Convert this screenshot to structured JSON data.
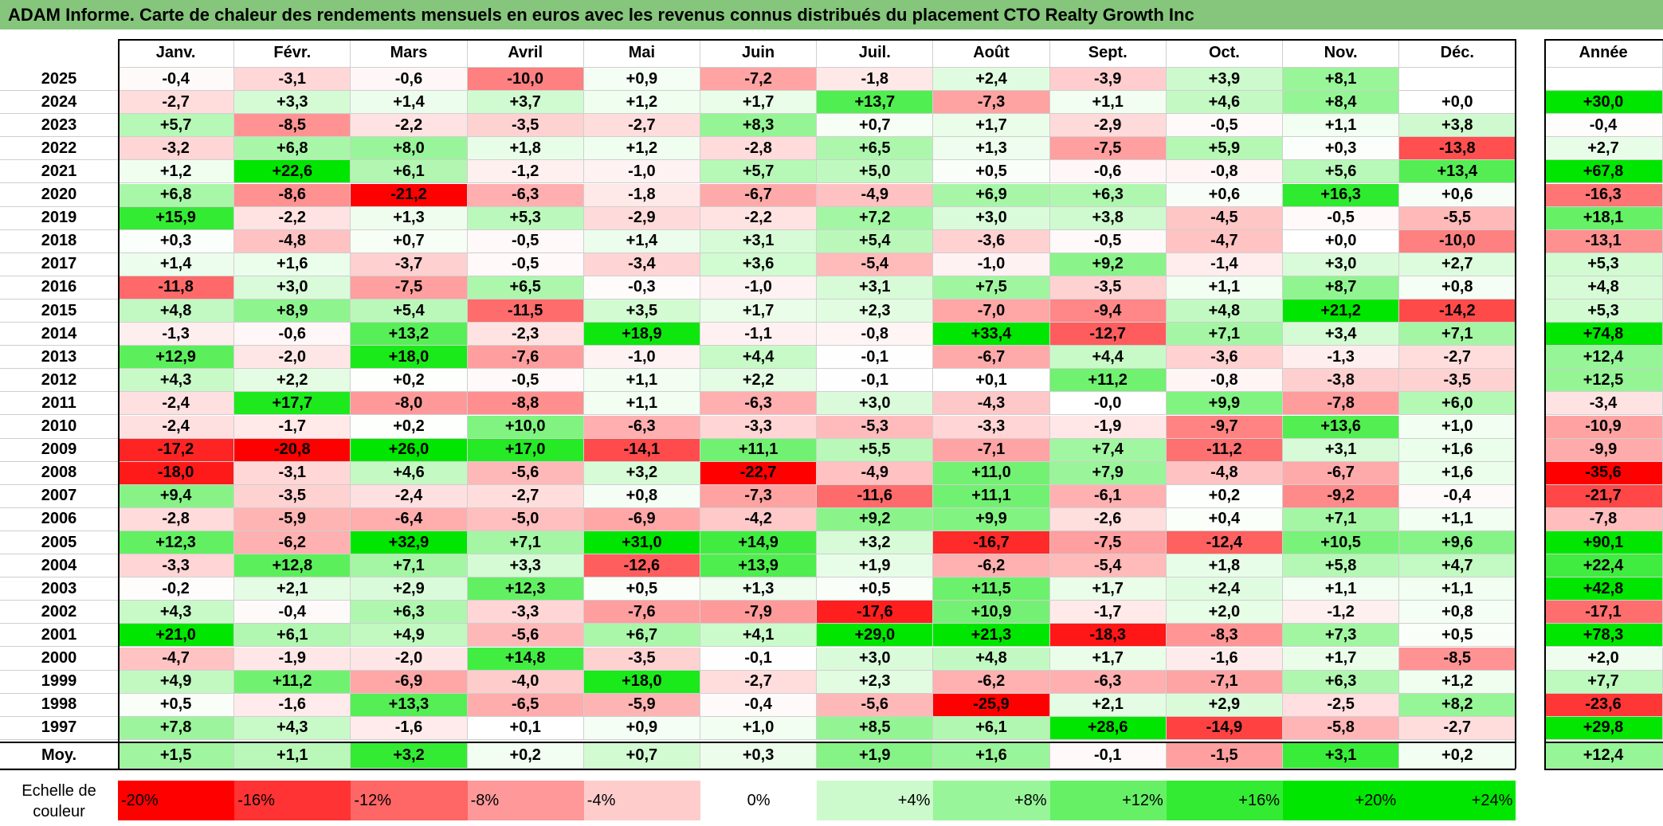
{
  "title": "ADAM Informe. Carte de chaleur des rendements mensuels en euros avec les revenus connus distribués du placement CTO Realty Growth Inc",
  "chart_data": {
    "type": "heatmap",
    "title": "ADAM Informe. Carte de chaleur des rendements mensuels en euros avec les revenus connus distribués du placement CTO Realty Growth Inc",
    "columns": [
      "Janv.",
      "Févr.",
      "Mars",
      "Avril",
      "Mai",
      "Juin",
      "Juil.",
      "Août",
      "Sept.",
      "Oct.",
      "Nov.",
      "Déc."
    ],
    "annual_label": "Année",
    "rows": [
      {
        "year": "2025",
        "values": [
          "-0,4",
          "-3,1",
          "-0,6",
          "-10,0",
          "+0,9",
          "-7,2",
          "-1,8",
          "+2,4",
          "-3,9",
          "+3,9",
          "+8,1",
          ""
        ],
        "annual": ""
      },
      {
        "year": "2024",
        "values": [
          "-2,7",
          "+3,3",
          "+1,4",
          "+3,7",
          "+1,2",
          "+1,7",
          "+13,7",
          "-7,3",
          "+1,1",
          "+4,6",
          "+8,4",
          "+0,0"
        ],
        "annual": "+30,0"
      },
      {
        "year": "2023",
        "values": [
          "+5,7",
          "-8,5",
          "-2,2",
          "-3,5",
          "-2,7",
          "+8,3",
          "+0,7",
          "+1,7",
          "-2,9",
          "-0,5",
          "+1,1",
          "+3,8"
        ],
        "annual": "-0,4"
      },
      {
        "year": "2022",
        "values": [
          "-3,2",
          "+6,8",
          "+8,0",
          "+1,8",
          "+1,2",
          "-2,8",
          "+6,5",
          "+1,3",
          "-7,5",
          "+5,9",
          "+0,3",
          "-13,8"
        ],
        "annual": "+2,7"
      },
      {
        "year": "2021",
        "values": [
          "+1,2",
          "+22,6",
          "+6,1",
          "-1,2",
          "-1,0",
          "+5,7",
          "+5,0",
          "+0,5",
          "-0,6",
          "-0,8",
          "+5,6",
          "+13,4"
        ],
        "annual": "+67,8"
      },
      {
        "year": "2020",
        "values": [
          "+6,8",
          "-8,6",
          "-21,2",
          "-6,3",
          "-1,8",
          "-6,7",
          "-4,9",
          "+6,9",
          "+6,3",
          "+0,6",
          "+16,3",
          "+0,6"
        ],
        "annual": "-16,3"
      },
      {
        "year": "2019",
        "values": [
          "+15,9",
          "-2,2",
          "+1,3",
          "+5,3",
          "-2,9",
          "-2,2",
          "+7,2",
          "+3,0",
          "+3,8",
          "-4,5",
          "-0,5",
          "-5,5"
        ],
        "annual": "+18,1"
      },
      {
        "year": "2018",
        "values": [
          "+0,3",
          "-4,8",
          "+0,7",
          "-0,5",
          "+1,4",
          "+3,1",
          "+5,4",
          "-3,6",
          "-0,5",
          "-4,7",
          "+0,0",
          "-10,0"
        ],
        "annual": "-13,1"
      },
      {
        "year": "2017",
        "values": [
          "+1,4",
          "+1,6",
          "-3,7",
          "-0,5",
          "-3,4",
          "+3,6",
          "-5,4",
          "-1,0",
          "+9,2",
          "-1,4",
          "+3,0",
          "+2,7"
        ],
        "annual": "+5,3"
      },
      {
        "year": "2016",
        "values": [
          "-11,8",
          "+3,0",
          "-7,5",
          "+6,5",
          "-0,3",
          "-1,0",
          "+3,1",
          "+7,5",
          "-3,5",
          "+1,1",
          "+8,7",
          "+0,8"
        ],
        "annual": "+4,8"
      },
      {
        "year": "2015",
        "values": [
          "+4,8",
          "+8,9",
          "+5,4",
          "-11,5",
          "+3,5",
          "+1,7",
          "+2,3",
          "-7,0",
          "-9,4",
          "+4,8",
          "+21,2",
          "-14,2"
        ],
        "annual": "+5,3"
      },
      {
        "year": "2014",
        "values": [
          "-1,3",
          "-0,6",
          "+13,2",
          "-2,3",
          "+18,9",
          "-1,1",
          "-0,8",
          "+33,4",
          "-12,7",
          "+7,1",
          "+3,4",
          "+7,1"
        ],
        "annual": "+74,8"
      },
      {
        "year": "2013",
        "values": [
          "+12,9",
          "-2,0",
          "+18,0",
          "-7,6",
          "-1,0",
          "+4,4",
          "-0,1",
          "-6,7",
          "+4,4",
          "-3,6",
          "-1,3",
          "-2,7"
        ],
        "annual": "+12,4"
      },
      {
        "year": "2012",
        "values": [
          "+4,3",
          "+2,2",
          "+0,2",
          "-0,5",
          "+1,1",
          "+2,2",
          "-0,1",
          "+0,1",
          "+11,2",
          "-0,8",
          "-3,8",
          "-3,5"
        ],
        "annual": "+12,5"
      },
      {
        "year": "2011",
        "values": [
          "-2,4",
          "+17,7",
          "-8,0",
          "-8,8",
          "+1,1",
          "-6,3",
          "+3,0",
          "-4,3",
          "-0,0",
          "+9,9",
          "-7,8",
          "+6,0"
        ],
        "annual": "-3,4"
      },
      {
        "year": "2010",
        "values": [
          "-2,4",
          "-1,7",
          "+0,2",
          "+10,0",
          "-6,3",
          "-3,3",
          "-5,3",
          "-3,3",
          "-1,9",
          "-9,7",
          "+13,6",
          "+1,0"
        ],
        "annual": "-10,9"
      },
      {
        "year": "2009",
        "values": [
          "-17,2",
          "-20,8",
          "+26,0",
          "+17,0",
          "-14,1",
          "+11,1",
          "+5,5",
          "-7,1",
          "+7,4",
          "-11,2",
          "+3,1",
          "+1,6"
        ],
        "annual": "-9,9"
      },
      {
        "year": "2008",
        "values": [
          "-18,0",
          "-3,1",
          "+4,6",
          "-5,6",
          "+3,2",
          "-22,7",
          "-4,9",
          "+11,0",
          "+7,9",
          "-4,8",
          "-6,7",
          "+1,6"
        ],
        "annual": "-35,6"
      },
      {
        "year": "2007",
        "values": [
          "+9,4",
          "-3,5",
          "-2,4",
          "-2,7",
          "+0,8",
          "-7,3",
          "-11,6",
          "+11,1",
          "-6,1",
          "+0,2",
          "-9,2",
          "-0,4"
        ],
        "annual": "-21,7"
      },
      {
        "year": "2006",
        "values": [
          "-2,8",
          "-5,9",
          "-6,4",
          "-5,0",
          "-6,9",
          "-4,2",
          "+9,2",
          "+9,9",
          "-2,6",
          "+0,4",
          "+7,1",
          "+1,1"
        ],
        "annual": "-7,8"
      },
      {
        "year": "2005",
        "values": [
          "+12,3",
          "-6,2",
          "+32,9",
          "+7,1",
          "+31,0",
          "+14,9",
          "+3,2",
          "-16,7",
          "-7,5",
          "-12,4",
          "+10,5",
          "+9,6"
        ],
        "annual": "+90,1"
      },
      {
        "year": "2004",
        "values": [
          "-3,3",
          "+12,8",
          "+7,1",
          "+3,3",
          "-12,6",
          "+13,9",
          "+1,9",
          "-6,2",
          "-5,4",
          "+1,8",
          "+5,8",
          "+4,7"
        ],
        "annual": "+22,4"
      },
      {
        "year": "2003",
        "values": [
          "-0,2",
          "+2,1",
          "+2,9",
          "+12,3",
          "+0,5",
          "+1,3",
          "+0,5",
          "+11,5",
          "+1,7",
          "+2,4",
          "+1,1",
          "+1,1"
        ],
        "annual": "+42,8"
      },
      {
        "year": "2002",
        "values": [
          "+4,3",
          "-0,4",
          "+6,3",
          "-3,3",
          "-7,6",
          "-7,9",
          "-17,6",
          "+10,9",
          "-1,7",
          "+2,0",
          "-1,2",
          "+0,8"
        ],
        "annual": "-17,1"
      },
      {
        "year": "2001",
        "values": [
          "+21,0",
          "+6,1",
          "+4,9",
          "-5,6",
          "+6,7",
          "+4,1",
          "+29,0",
          "+21,3",
          "-18,3",
          "-8,3",
          "+7,3",
          "+0,5"
        ],
        "annual": "+78,3"
      },
      {
        "year": "2000",
        "values": [
          "-4,7",
          "-1,9",
          "-2,0",
          "+14,8",
          "-3,5",
          "-0,1",
          "+3,0",
          "+4,8",
          "+1,7",
          "-1,6",
          "+1,7",
          "-8,5"
        ],
        "annual": "+2,0"
      },
      {
        "year": "1999",
        "values": [
          "+4,9",
          "+11,2",
          "-6,9",
          "-4,0",
          "+18,0",
          "-2,7",
          "+2,3",
          "-6,2",
          "-6,3",
          "-7,1",
          "+6,3",
          "+1,2"
        ],
        "annual": "+7,7"
      },
      {
        "year": "1998",
        "values": [
          "+0,5",
          "-1,6",
          "+13,3",
          "-6,5",
          "-5,9",
          "-0,4",
          "-5,6",
          "-25,9",
          "+2,1",
          "+2,9",
          "-2,5",
          "+8,2"
        ],
        "annual": "-23,6"
      },
      {
        "year": "1997",
        "values": [
          "+7,8",
          "+4,3",
          "-1,6",
          "+0,1",
          "+0,9",
          "+1,0",
          "+8,5",
          "+6,1",
          "+28,6",
          "-14,9",
          "-5,8",
          "-2,7"
        ],
        "annual": "+29,8"
      }
    ],
    "average": {
      "label": "Moy.",
      "values": [
        "+1,5",
        "+1,1",
        "+3,2",
        "+0,2",
        "+0,7",
        "+0,3",
        "+1,9",
        "+1,6",
        "-0,1",
        "-1,5",
        "+3,1",
        "+0,2"
      ],
      "annual": "+12,4"
    },
    "scale": {
      "label": "Echelle de couleur",
      "steps": [
        "-20%",
        "-16%",
        "-12%",
        "-8%",
        "-4%",
        "0%",
        "+4%",
        "+8%",
        "+12%",
        "+16%",
        "+20%",
        "+24%"
      ]
    },
    "colors": {
      "negative": "#ff0000",
      "neutral": "#ffffff",
      "positive": "#00e600",
      "title_bg": "#86c67c"
    }
  }
}
